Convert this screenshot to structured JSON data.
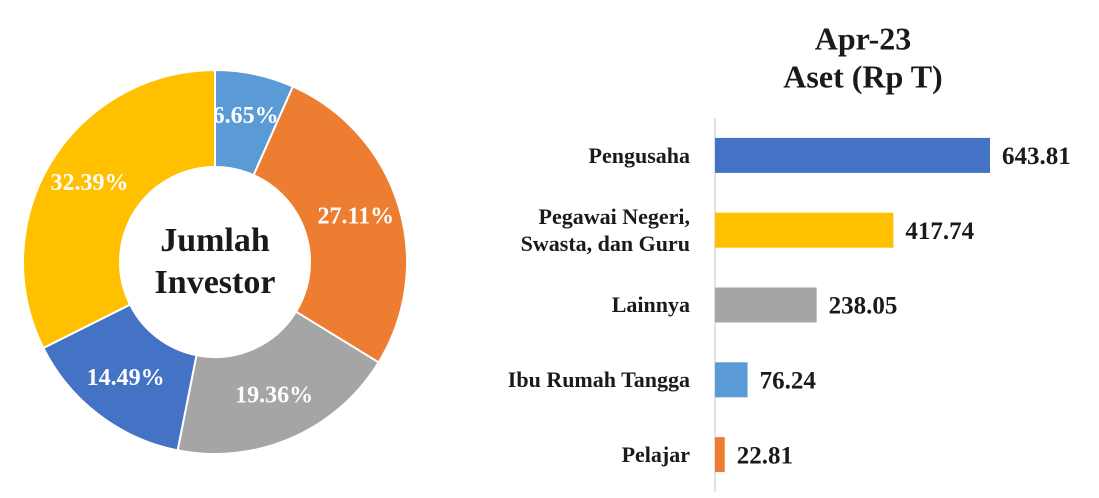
{
  "chart_data": [
    {
      "type": "donut",
      "center_label": [
        "Jumlah",
        "Investor"
      ],
      "values": [
        6.65,
        27.11,
        19.36,
        14.49,
        32.39
      ],
      "value_labels": [
        "6.65%",
        "27.11%",
        "19.36%",
        "14.49%",
        "32.39%"
      ],
      "colors": [
        "#5B9BD5",
        "#ED7D31",
        "#A5A5A5",
        "#4472C4",
        "#FFC000"
      ]
    },
    {
      "type": "hbar",
      "title": [
        "Apr-23",
        "Aset (Rp T)"
      ],
      "categories": [
        "Pengusaha",
        "Pegawai Negeri,\nSwasta, dan Guru",
        "Lainnya",
        "Ibu Rumah Tangga",
        "Pelajar"
      ],
      "values": [
        643.81,
        417.74,
        238.05,
        76.24,
        22.81
      ],
      "colors": [
        "#4472C4",
        "#FFC000",
        "#A5A5A5",
        "#5B9BD5",
        "#ED7D31"
      ],
      "xlim": [
        0,
        700
      ]
    }
  ]
}
